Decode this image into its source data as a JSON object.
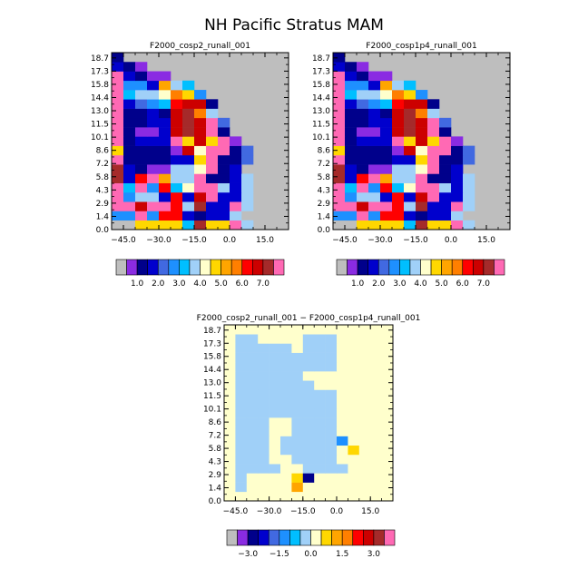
{
  "title": "NH Pacific Stratus MAM",
  "colors": {
    "palette": [
      "#bebebe",
      "#8a2be2",
      "#00008b",
      "#0000cd",
      "#4169e1",
      "#1e90ff",
      "#00bfff",
      "#a0d0f8",
      "#ffffcc",
      "#ffd700",
      "#ffa500",
      "#ff7f00",
      "#ff0000",
      "#cc0000",
      "#a52a2a",
      "#ff69b4"
    ],
    "missing": "#bebebe",
    "diff_palette": [
      "#bebebe",
      "#8a2be2",
      "#00008b",
      "#0000cd",
      "#4169e1",
      "#1e90ff",
      "#00bfff",
      "#a0d0f8",
      "#ffffcc",
      "#ffd700",
      "#ffa500",
      "#ff7f00",
      "#ff0000",
      "#cc0000",
      "#a52a2a",
      "#ff69b4"
    ]
  },
  "chart_data": [
    {
      "type": "heatmap",
      "title": "F2000_cosp2_runall_001",
      "x_ticks": [
        -45.0,
        -30.0,
        -15.0,
        0.0,
        15.0
      ],
      "x_tick_labels": [
        "−45.0",
        "−30.0",
        "−15.0",
        "0.0",
        "15.0"
      ],
      "y_tick_labels": [
        "0.0",
        "1.4",
        "2.9",
        "4.3",
        "5.8",
        "7.2",
        "8.6",
        "10.1",
        "11.5",
        "13.0",
        "14.4",
        "15.8",
        "17.3",
        "18.7"
      ],
      "xlim": [
        -50.0,
        25.0
      ],
      "nx": 15,
      "ny": 19,
      "colorbar_labels": [
        "1.0",
        "2.0",
        "3.0",
        "4.0",
        "5.0",
        "6.0",
        "7.0"
      ],
      "rows": [
        "0099996E99F7",
        "55F5CC32337",
        "FFDFFC7E33F7",
        "F5773C3DF337",
        "F6F5C68FF737",
        "E3CFA77F2237",
        "E3211778F23",
        "F2222339F224",
        "922221D8FF24",
        "F2333F9D9F1",
        "F2113DEDF2",
        "F2233DEDF4",
        "F2232DEB7",
        "F3456CDD2",
        "F6778B95",
        "F553A76",
        "F3211",
        "321",
        "2"
      ]
    },
    {
      "type": "heatmap",
      "title": "F2000_cosp1p4_runall_001",
      "x_ticks": [
        -45.0,
        -30.0,
        -15.0,
        0.0,
        15.0
      ],
      "x_tick_labels": [
        "−45.0",
        "−30.0",
        "−15.0",
        "0.0",
        "15.0"
      ],
      "y_tick_labels": [
        "0.0",
        "1.4",
        "2.9",
        "4.3",
        "5.8",
        "7.2",
        "8.6",
        "10.1",
        "11.5",
        "13.0",
        "14.4",
        "15.8",
        "17.3",
        "18.7"
      ],
      "xlim": [
        -50.0,
        25.0
      ],
      "nx": 15,
      "ny": 19,
      "colorbar_labels": [
        "1.0",
        "2.0",
        "3.0",
        "4.0",
        "5.0",
        "6.0",
        "7.0"
      ],
      "rows": [
        "0099996E99F7",
        "55F5CC32337",
        "FFDFFC7E33F7",
        "F5773C3DF337",
        "F6F5C68FF737",
        "E3CFA77F2237",
        "E3211778F23",
        "F2222339F224",
        "922221D8FF24",
        "F2333F9D9F1",
        "F2113DEDF2",
        "F2233DEDF4",
        "F2232DEB7",
        "F3456CDD2",
        "F6778B95",
        "F553A76",
        "F3211",
        "321",
        "2"
      ]
    },
    {
      "type": "heatmap",
      "title": "F2000_cosp2_runall_001 − F2000_cosp1p4_runall_001",
      "x_ticks": [
        -45.0,
        -30.0,
        -15.0,
        0.0,
        15.0
      ],
      "x_tick_labels": [
        "−45.0",
        "−30.0",
        "−15.0",
        "0.0",
        "15.0"
      ],
      "y_tick_labels": [
        "0.0",
        "1.4",
        "2.9",
        "4.3",
        "5.8",
        "7.2",
        "8.6",
        "10.1",
        "11.5",
        "13.0",
        "14.4",
        "15.8",
        "17.3",
        "18.7"
      ],
      "xlim": [
        -50.0,
        25.0
      ],
      "nx": 15,
      "ny": 19,
      "colorbar_labels": [
        "−3.0",
        "−1.5",
        "0.0",
        "1.5",
        "3.0"
      ],
      "rows": [
        "888888888888888",
        "878888A88888888",
        "8788889288888888",
        "87777887777888888",
        "877788777788888888",
        "8777877777898888888",
        "8777877777588888888",
        "8777887777888888888",
        "8777887777888888888",
        "8777777777888888888",
        "8777777777888888888",
        "8777777777888888878",
        "8777777788888888888",
        "8777777888888888888",
        "8777777777888888888",
        "8777777777888888888",
        "8777778777888888888",
        "8778888777888888888",
        "8888888888888888888"
      ]
    }
  ]
}
